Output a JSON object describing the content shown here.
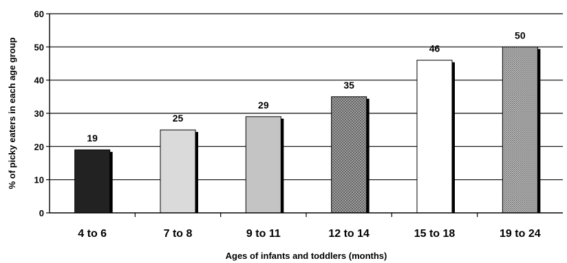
{
  "chart_data": {
    "type": "bar",
    "title": "",
    "xlabel": "Ages of infants and toddlers (months)",
    "ylabel": "% of picky eaters in each age group",
    "categories": [
      "4 to 6",
      "7 to 8",
      "9 to 11",
      "12 to 14",
      "15 to 18",
      "19 to 24"
    ],
    "values": [
      19,
      25,
      29,
      35,
      46,
      50
    ],
    "ylim": [
      0,
      60
    ],
    "yticks": [
      0,
      10,
      20,
      30,
      40,
      50,
      60
    ],
    "grid": true,
    "bar_styles": [
      {
        "fill": "solid",
        "color": "#222222"
      },
      {
        "fill": "solid",
        "color": "#dadada"
      },
      {
        "fill": "solid",
        "color": "#c4c4c4"
      },
      {
        "fill": "crosshatch",
        "color": "#8a8a8a"
      },
      {
        "fill": "solid",
        "color": "#ffffff"
      },
      {
        "fill": "dotted",
        "color": "#9a9a9a"
      }
    ]
  }
}
